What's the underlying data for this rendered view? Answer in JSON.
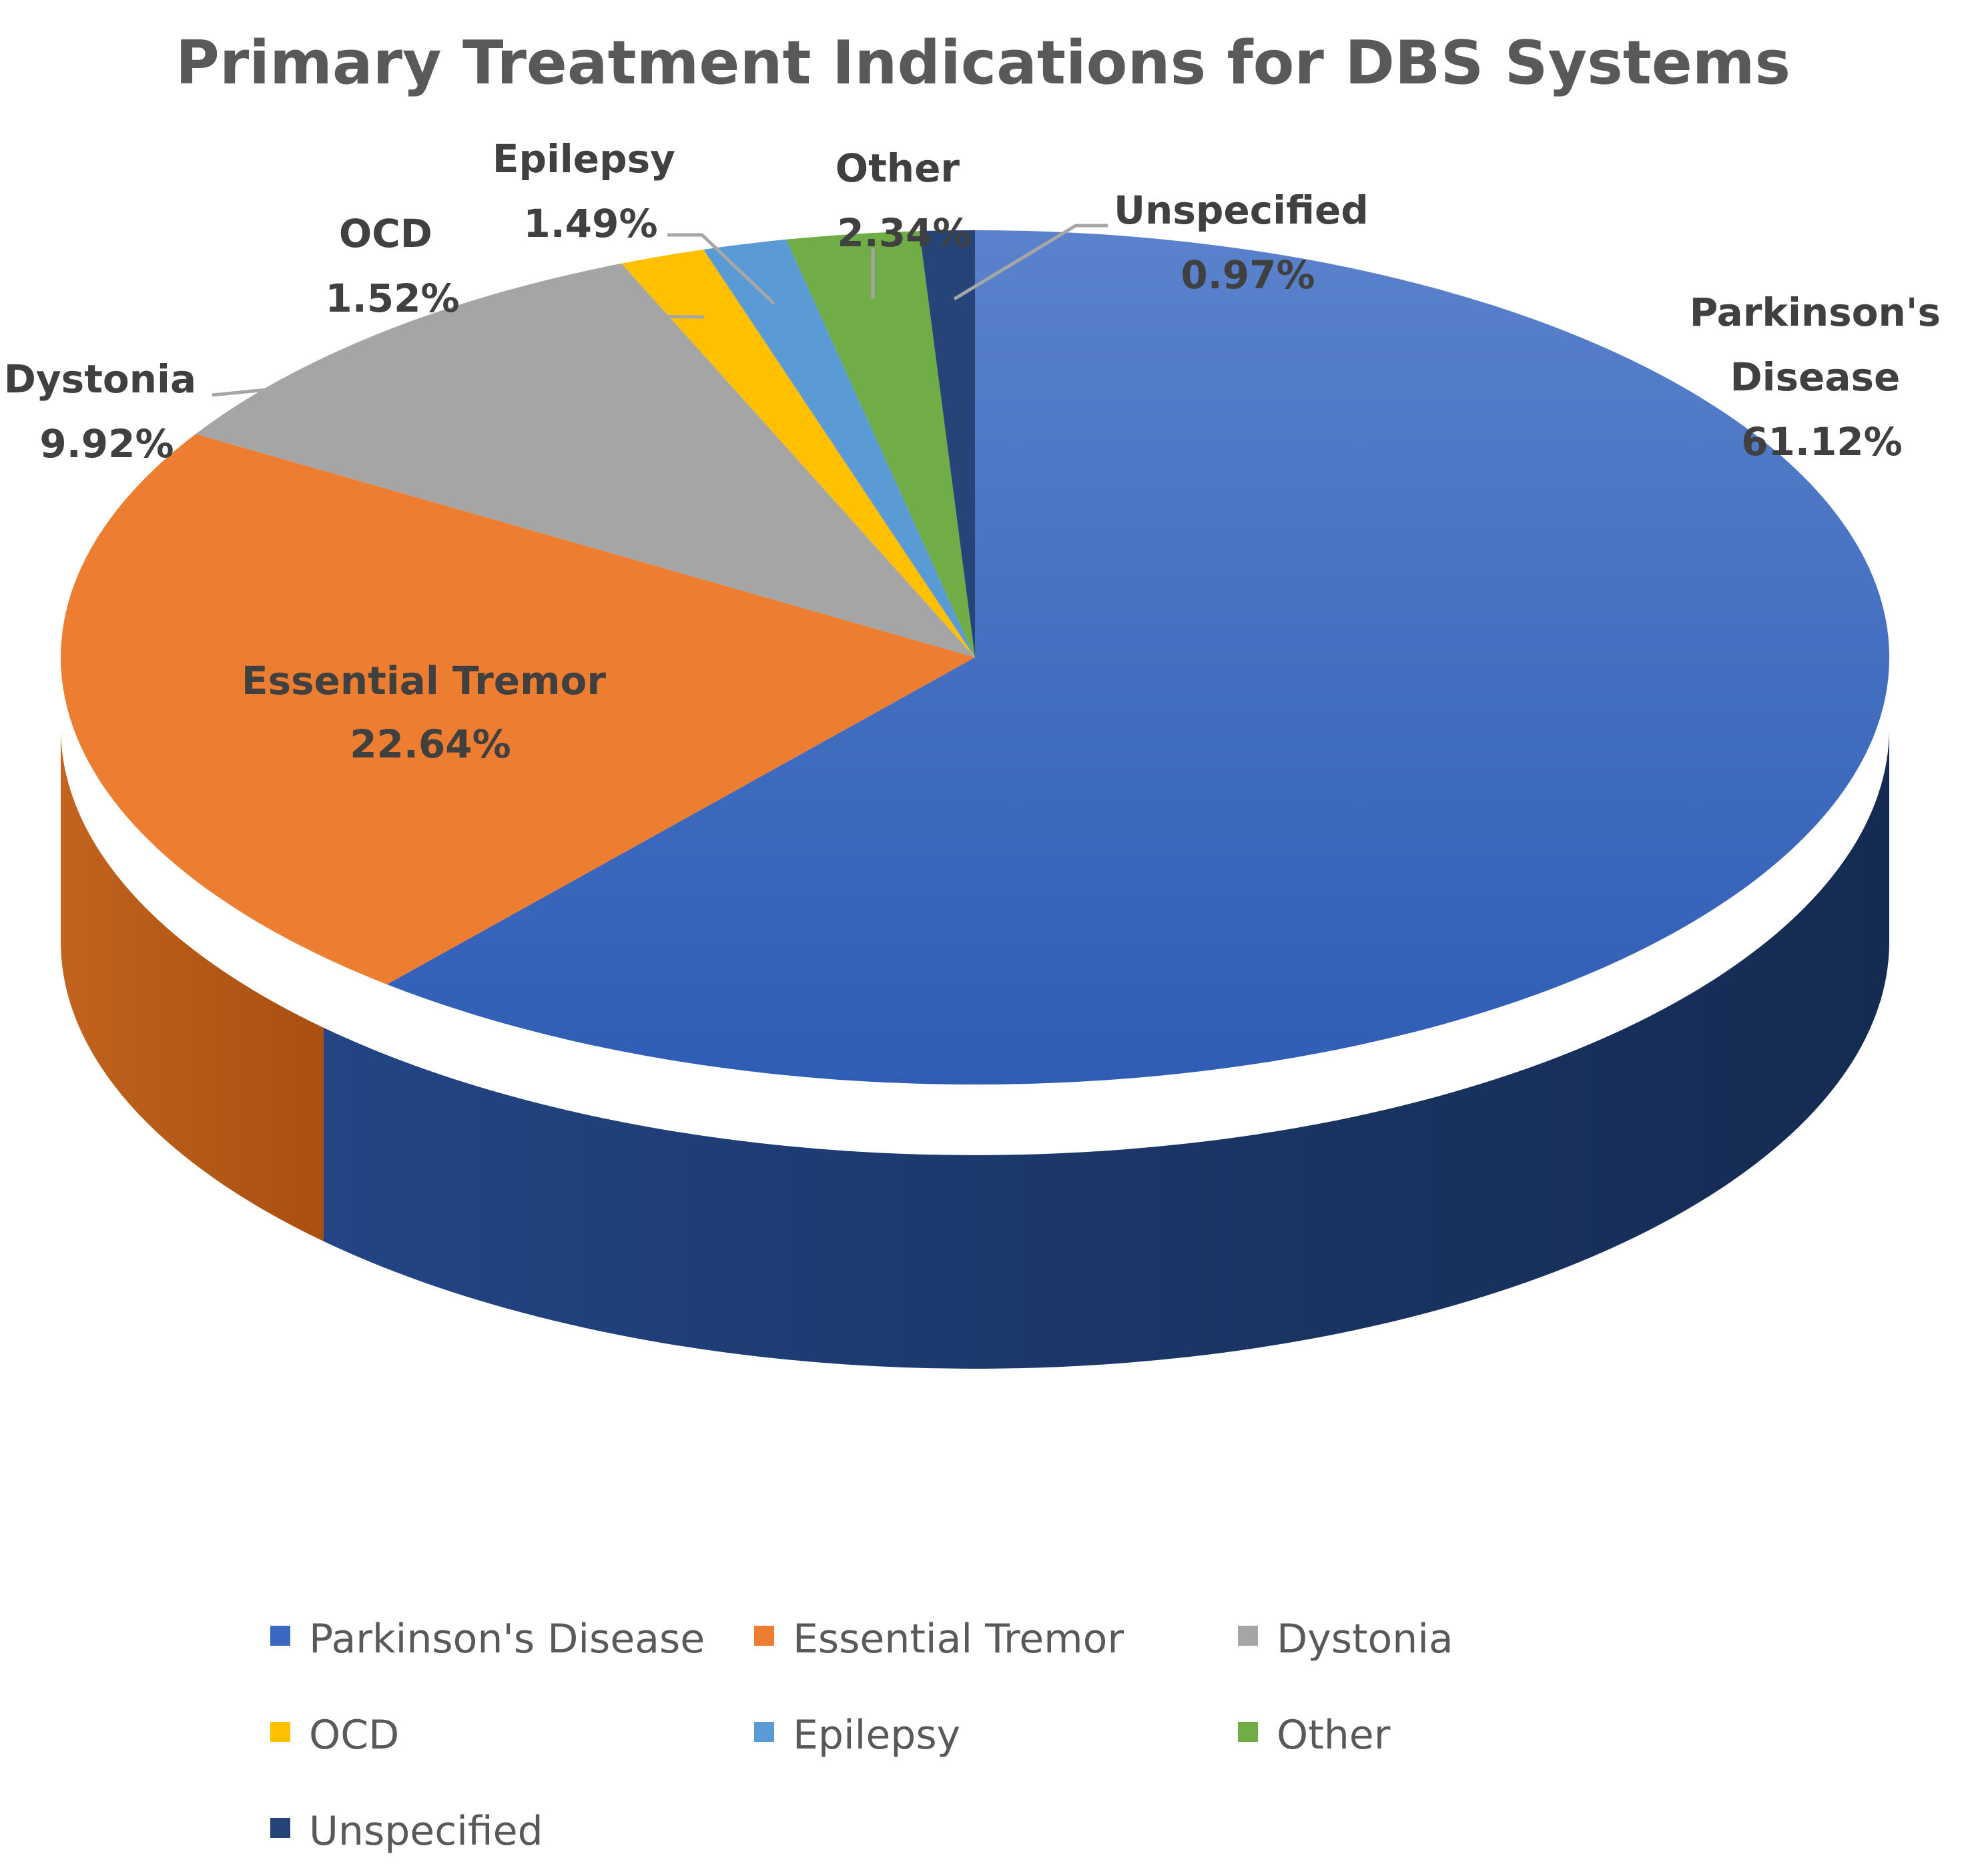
{
  "chart_data": {
    "type": "pie",
    "title": "Primary Treatment Indications for DBS Systems",
    "slices": [
      {
        "label": "Parkinson's Disease",
        "value": 61.12,
        "display": "61.12%",
        "color": "#3a67c1"
      },
      {
        "label": "Essential Tremor",
        "value": 22.64,
        "display": "22.64%",
        "color": "#ed7d31"
      },
      {
        "label": "Dystonia",
        "value": 9.92,
        "display": "9.92%",
        "color": "#a5a5a5"
      },
      {
        "label": "OCD",
        "value": 1.52,
        "display": "1.52%",
        "color": "#ffc000"
      },
      {
        "label": "Epilepsy",
        "value": 1.49,
        "display": "1.49%",
        "color": "#5b9bd5"
      },
      {
        "label": "Other",
        "value": 2.34,
        "display": "2.34%",
        "color": "#70ad47"
      },
      {
        "label": "Unspecified",
        "value": 0.97,
        "display": "0.97%",
        "color": "#264478"
      }
    ],
    "legend_position": "bottom",
    "style": "3d"
  }
}
